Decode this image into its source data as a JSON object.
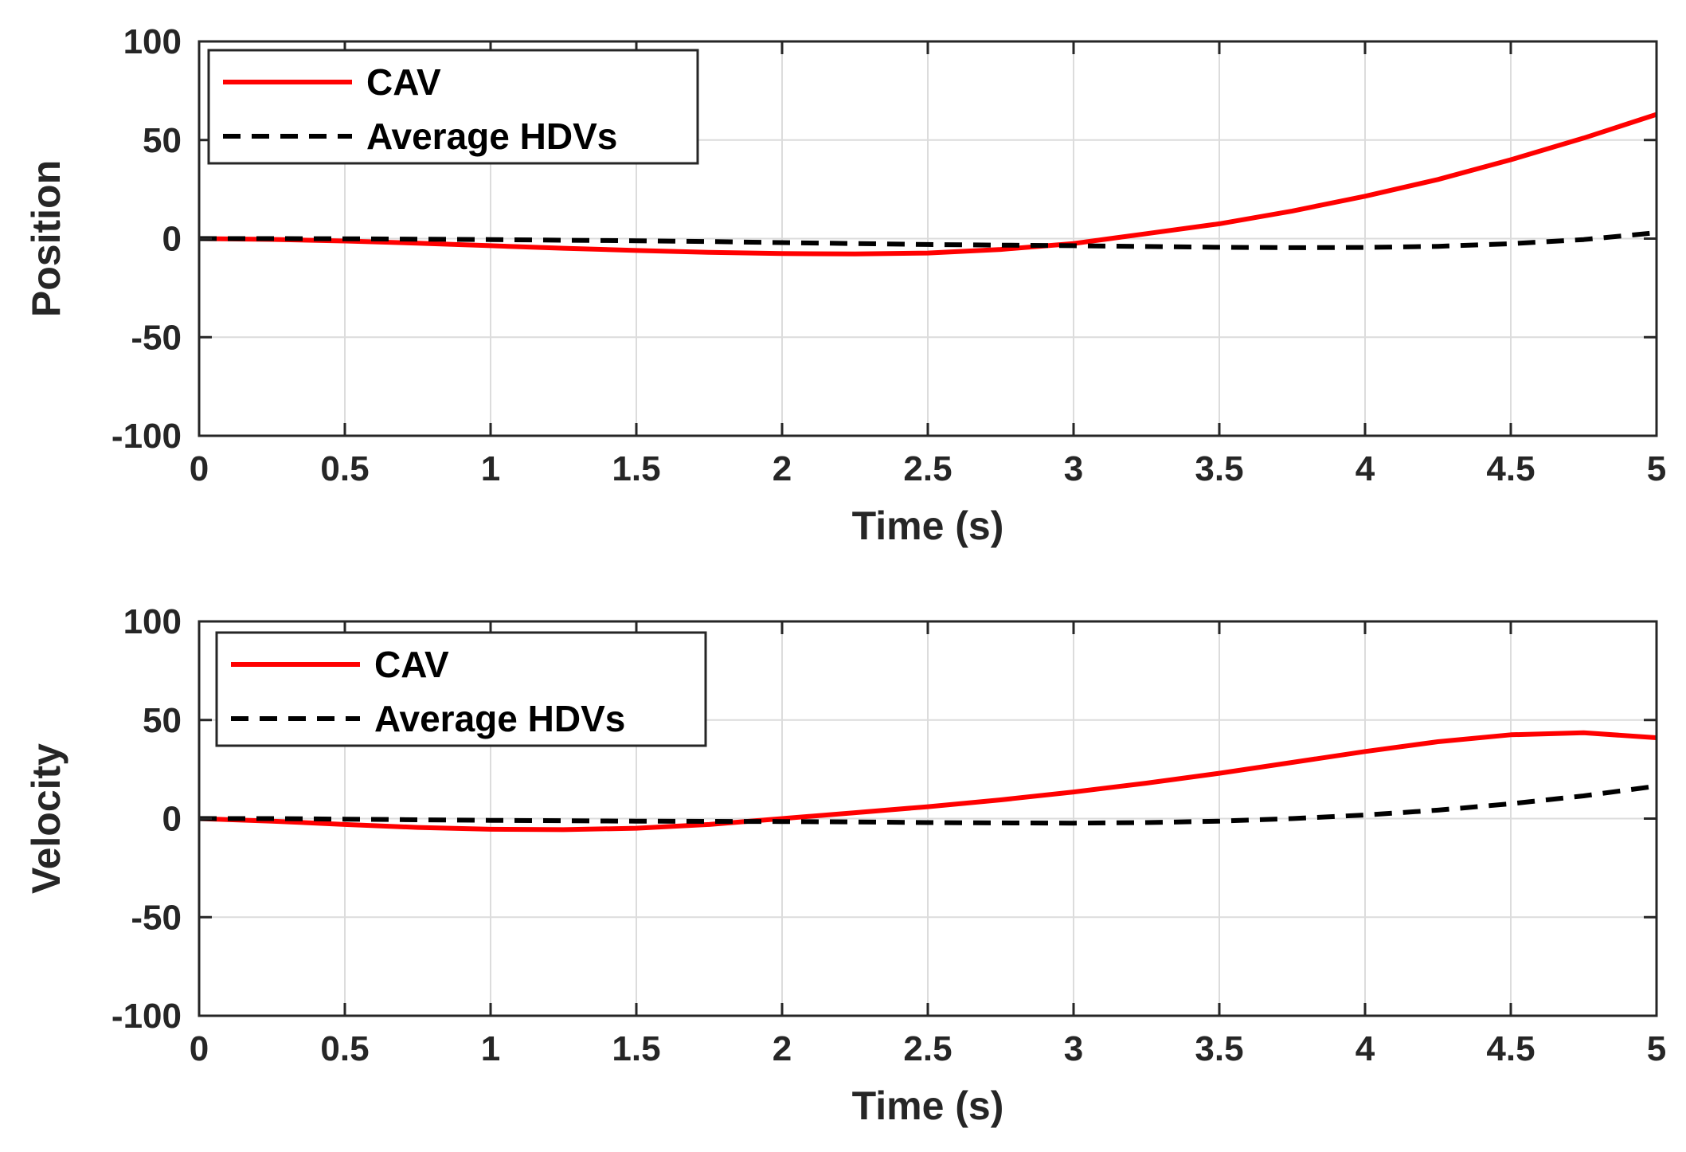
{
  "chart_data": [
    {
      "type": "line",
      "xlabel": "Time (s)",
      "ylabel": "Position",
      "xlim": [
        0,
        5
      ],
      "ylim": [
        -100,
        100
      ],
      "xticks": [
        "0",
        "0.5",
        "1",
        "1.5",
        "2",
        "2.5",
        "3",
        "3.5",
        "4",
        "4.5",
        "5"
      ],
      "yticks": [
        "100",
        "50",
        "0",
        "-50",
        "-100"
      ],
      "grid": true,
      "legend_position": "top-left",
      "x": [
        0,
        0.25,
        0.5,
        0.75,
        1,
        1.25,
        1.5,
        1.75,
        2,
        2.25,
        2.5,
        2.75,
        3,
        3.25,
        3.5,
        3.75,
        4,
        4.25,
        4.5,
        4.75,
        5
      ],
      "series": [
        {
          "name": "CAV",
          "color": "#ff0000",
          "style": "solid",
          "values": [
            0,
            -0.4,
            -1.2,
            -2.3,
            -3.6,
            -4.9,
            -6.0,
            -7.0,
            -7.6,
            -7.8,
            -7.3,
            -5.5,
            -2.5,
            2.5,
            7.5,
            14.0,
            21.5,
            30.0,
            40.0,
            51.0,
            63.0
          ]
        },
        {
          "name": "Average HDVs",
          "color": "#000000",
          "style": "dashed",
          "values": [
            0,
            0,
            -0.1,
            -0.3,
            -0.5,
            -0.8,
            -1.1,
            -1.5,
            -2.0,
            -2.5,
            -3.0,
            -3.3,
            -3.6,
            -4.0,
            -4.4,
            -4.6,
            -4.5,
            -3.9,
            -2.6,
            -0.5,
            3.0
          ]
        }
      ]
    },
    {
      "type": "line",
      "xlabel": "Time (s)",
      "ylabel": "Velocity",
      "xlim": [
        0,
        5
      ],
      "ylim": [
        -100,
        100
      ],
      "xticks": [
        "0",
        "0.5",
        "1",
        "1.5",
        "2",
        "2.5",
        "3",
        "3.5",
        "4",
        "4.5",
        "5"
      ],
      "yticks": [
        "100",
        "50",
        "0",
        "-50",
        "-100"
      ],
      "grid": true,
      "legend_position": "top-left",
      "x": [
        0,
        0.25,
        0.5,
        0.75,
        1,
        1.25,
        1.5,
        1.75,
        2,
        2.25,
        2.5,
        2.75,
        3,
        3.25,
        3.5,
        3.75,
        4,
        4.25,
        4.5,
        4.75,
        5
      ],
      "series": [
        {
          "name": "CAV",
          "color": "#ff0000",
          "style": "solid",
          "values": [
            0,
            -1.3,
            -3.0,
            -4.5,
            -5.4,
            -5.6,
            -4.9,
            -3.0,
            0,
            3.0,
            6.0,
            9.5,
            13.5,
            18.0,
            23.0,
            28.5,
            34.0,
            39.0,
            42.5,
            43.5,
            41.0
          ]
        },
        {
          "name": "Average HDVs",
          "color": "#000000",
          "style": "dashed",
          "values": [
            0,
            0,
            -0.3,
            -0.6,
            -0.9,
            -1.1,
            -1.3,
            -1.4,
            -1.5,
            -1.7,
            -2.0,
            -2.2,
            -2.3,
            -2.0,
            -1.3,
            0,
            1.8,
            4.3,
            7.5,
            11.5,
            16.5
          ]
        }
      ]
    }
  ]
}
